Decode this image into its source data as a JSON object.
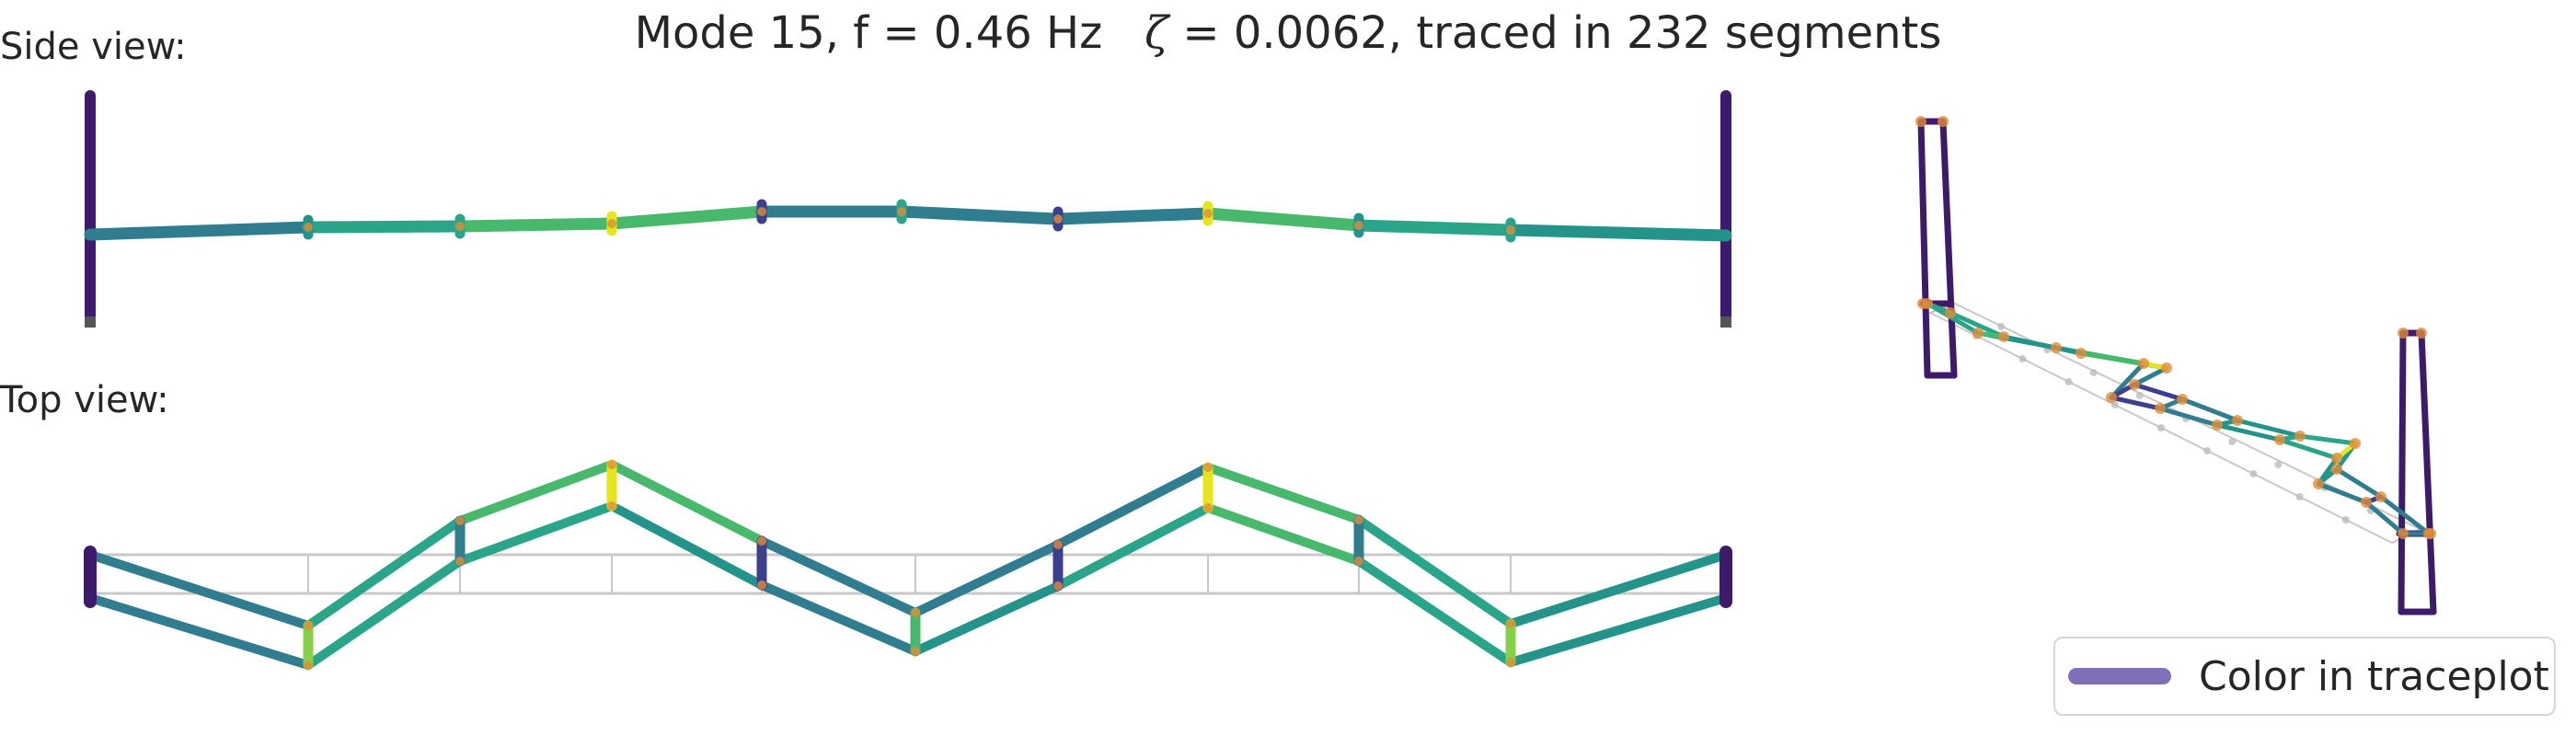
{
  "title": {
    "part1": "Mode 15, f = 0.46 Hz",
    "zeta_symbol": "ζ",
    "part2": " = 0.0062,  traced in 232 segments"
  },
  "labels": {
    "side_view": "Side view:",
    "top_view": "Top view:"
  },
  "legend": {
    "label": "Color in traceplot",
    "color": "#8070b8"
  },
  "colors": {
    "dark_purple": "#3e1a6a",
    "indigo": "#3b3f8c",
    "teal_blue": "#2f7d8e",
    "teal": "#24948b",
    "green_teal": "#2aa58a",
    "green": "#48b96c",
    "light_green": "#85d24a",
    "yellow": "#e5e41d",
    "node": "#e08c3a",
    "reference_grid": "#c8c8c8"
  }
}
